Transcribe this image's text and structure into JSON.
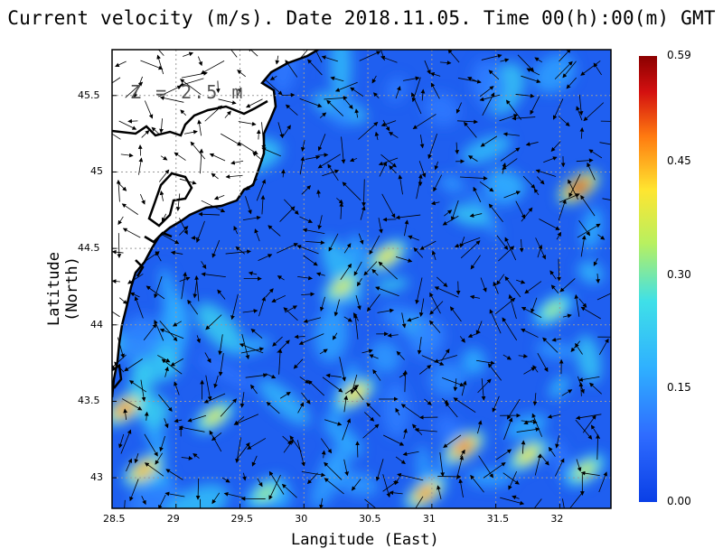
{
  "title": "Current velocity (m/s). Date 2018.11.05. Time 00(h):00(m) GMT",
  "depth_label": "Z = 2.5 m",
  "xlabel": "Langitude (East)",
  "ylabel": "Latitude (North)",
  "x_ticks": [
    "28.5",
    "29",
    "29.5",
    "30",
    "30.5",
    "31",
    "31.5",
    "32"
  ],
  "y_ticks": [
    "43",
    "43.5",
    "44",
    "44.5",
    "45",
    "45.5"
  ],
  "colorbar": {
    "ticks": [
      "0.59",
      "0.45",
      "0.30",
      "0.15",
      "0.00"
    ],
    "values": [
      0.59,
      0.45,
      0.3,
      0.15,
      0.0
    ],
    "min": 0.0,
    "max": 0.59,
    "colors": [
      "#0a3fe6",
      "#2f8cff",
      "#3fd8f0",
      "#b8f060",
      "#ffe530",
      "#ff7a10",
      "#d31010",
      "#8b0000"
    ]
  },
  "chart_data": {
    "type": "heatmap",
    "title": "Current velocity (m/s). Date 2018.11.05. Time 00(h):00(m) GMT",
    "xlabel": "Langitude (East)",
    "ylabel": "Latitude (North)",
    "xlim": [
      28.5,
      32.4
    ],
    "ylim": [
      42.8,
      45.8
    ],
    "depth": "Z = 2.5 m",
    "value_range": [
      0.0,
      0.59
    ],
    "hotspots": [
      {
        "lon": 32.15,
        "lat": 44.9,
        "speed": 0.55
      },
      {
        "lon": 31.25,
        "lat": 43.2,
        "speed": 0.5
      },
      {
        "lon": 30.95,
        "lat": 42.9,
        "speed": 0.47
      },
      {
        "lon": 28.6,
        "lat": 43.45,
        "speed": 0.48
      },
      {
        "lon": 28.75,
        "lat": 43.05,
        "speed": 0.45
      },
      {
        "lon": 30.4,
        "lat": 43.55,
        "speed": 0.42
      },
      {
        "lon": 30.65,
        "lat": 44.45,
        "speed": 0.4
      },
      {
        "lon": 30.3,
        "lat": 44.25,
        "speed": 0.38
      },
      {
        "lon": 31.75,
        "lat": 43.15,
        "speed": 0.4
      },
      {
        "lon": 32.2,
        "lat": 43.05,
        "speed": 0.36
      },
      {
        "lon": 29.3,
        "lat": 43.4,
        "speed": 0.38
      },
      {
        "lon": 29.7,
        "lat": 42.9,
        "speed": 0.33
      },
      {
        "lon": 31.95,
        "lat": 44.1,
        "speed": 0.33
      }
    ]
  }
}
